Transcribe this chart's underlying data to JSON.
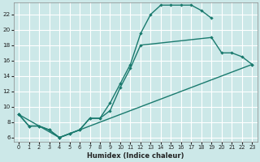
{
  "xlabel": "Humidex (Indice chaleur)",
  "bg_color": "#cce8e8",
  "line_color": "#1a7a6e",
  "grid_color": "#ffffff",
  "xlim": [
    -0.5,
    23.5
  ],
  "ylim": [
    5.5,
    23.5
  ],
  "yticks": [
    6,
    8,
    10,
    12,
    14,
    16,
    18,
    20,
    22
  ],
  "xticks": [
    0,
    1,
    2,
    3,
    4,
    5,
    6,
    7,
    8,
    9,
    10,
    11,
    12,
    13,
    14,
    15,
    16,
    17,
    18,
    19,
    20,
    21,
    22,
    23
  ],
  "curve1_x": [
    0,
    1,
    2,
    3,
    4,
    5,
    6,
    7,
    8,
    9,
    10,
    11,
    12,
    13,
    14,
    15,
    16,
    17,
    18,
    19
  ],
  "curve1_y": [
    9,
    7.5,
    7.5,
    7,
    6,
    6.5,
    7,
    8.5,
    8.5,
    10.5,
    13,
    15.5,
    19.5,
    22,
    23.2,
    23.2,
    23.2,
    23.2,
    22.5,
    21.5
  ],
  "curve2_x": [
    0,
    1,
    2,
    3,
    4,
    5,
    6,
    7,
    8,
    9,
    10,
    11,
    12,
    19,
    20,
    21,
    22,
    23
  ],
  "curve2_y": [
    9,
    7.5,
    7.5,
    7,
    6,
    6.5,
    7,
    8.5,
    8.5,
    9.5,
    12.5,
    15,
    18,
    19,
    17,
    17,
    16.5,
    15.5
  ],
  "curve3_x": [
    0,
    4,
    23
  ],
  "curve3_y": [
    9,
    6,
    15.5
  ]
}
